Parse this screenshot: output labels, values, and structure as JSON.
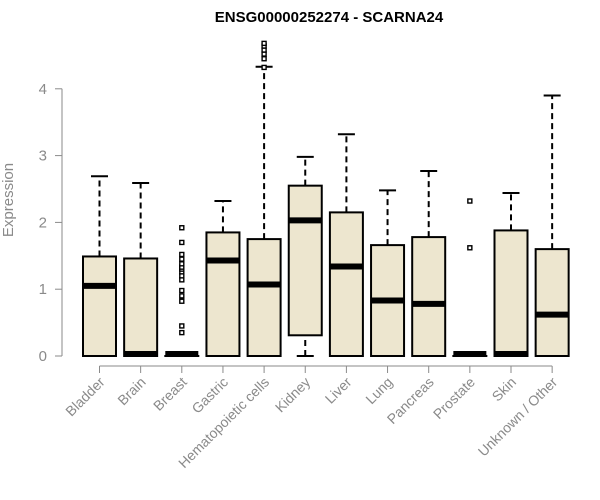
{
  "chart_data": {
    "type": "boxplot",
    "title": "ENSG00000252274 - SCARNA24",
    "ylabel": "Expression",
    "xlabel": "",
    "ylim": [
      0,
      4.7
    ],
    "yticks": [
      0,
      1,
      2,
      3,
      4
    ],
    "categories": [
      "Bladder",
      "Brain",
      "Breast",
      "Gastric",
      "Hematopoietic cells",
      "Kidney",
      "Liver",
      "Lung",
      "Pancreas",
      "Prostate",
      "Skin",
      "Unknown / Other"
    ],
    "boxes": [
      {
        "min": 0,
        "q1": 0,
        "median": 1.05,
        "q3": 1.49,
        "max": 2.69,
        "outliers": []
      },
      {
        "min": 0,
        "q1": 0,
        "median": 0,
        "q3": 1.46,
        "max": 2.59,
        "outliers": []
      },
      {
        "min": 0,
        "q1": 0,
        "median": 0,
        "q3": 0,
        "max": 0,
        "outliers": [
          0.35,
          0.45,
          0.82,
          0.9,
          0.98,
          1.14,
          1.2,
          1.26,
          1.3,
          1.33,
          1.38,
          1.45,
          1.52,
          1.7,
          1.92
        ]
      },
      {
        "min": 0,
        "q1": 0,
        "median": 1.43,
        "q3": 1.85,
        "max": 2.32,
        "outliers": []
      },
      {
        "min": 0,
        "q1": 0,
        "median": 1.07,
        "q3": 1.75,
        "max": 4.33,
        "outliers": [
          4.32,
          4.45,
          4.52,
          4.58,
          4.64,
          4.68
        ]
      },
      {
        "min": 0,
        "q1": 0.31,
        "median": 2.03,
        "q3": 2.55,
        "max": 2.98,
        "outliers": []
      },
      {
        "min": 0,
        "q1": 0,
        "median": 1.34,
        "q3": 2.15,
        "max": 3.32,
        "outliers": []
      },
      {
        "min": 0,
        "q1": 0,
        "median": 0.83,
        "q3": 1.66,
        "max": 2.48,
        "outliers": []
      },
      {
        "min": 0,
        "q1": 0,
        "median": 0.78,
        "q3": 1.78,
        "max": 2.77,
        "outliers": []
      },
      {
        "min": 0,
        "q1": 0,
        "median": 0,
        "q3": 0,
        "max": 0,
        "outliers": [
          1.62,
          2.32
        ]
      },
      {
        "min": 0,
        "q1": 0,
        "median": 0,
        "q3": 1.88,
        "max": 2.44,
        "outliers": []
      },
      {
        "min": 0,
        "q1": 0,
        "median": 0.62,
        "q3": 1.6,
        "max": 3.9,
        "outliers": []
      }
    ]
  }
}
